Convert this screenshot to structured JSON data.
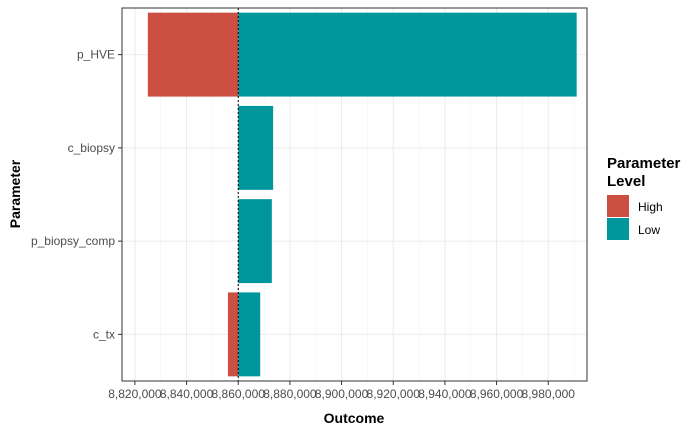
{
  "chart_data": {
    "type": "bar",
    "orientation": "horizontal",
    "subtype": "tornado",
    "xlabel": "Outcome",
    "ylabel": "Parameter",
    "xlim": [
      8815000,
      8995000
    ],
    "x_ticks": [
      8820000,
      8840000,
      8860000,
      8880000,
      8900000,
      8920000,
      8940000,
      8960000,
      8980000
    ],
    "x_tick_labels": [
      "8,820,000",
      "8,840,000",
      "8,860,000",
      "8,880,000",
      "8,900,000",
      "8,920,000",
      "8,940,000",
      "8,960,000",
      "8,980,000"
    ],
    "categories": [
      "p_HVE",
      "c_biopsy",
      "p_biopsy_comp",
      "c_tx"
    ],
    "base_value": 8860000,
    "series": [
      {
        "name": "High",
        "color": "#CB4E41",
        "ranges": [
          [
            8825000,
            8860000
          ],
          [
            8860000,
            8860000
          ],
          [
            8860000,
            8860000
          ],
          [
            8856000,
            8860000
          ]
        ]
      },
      {
        "name": "Low",
        "color": "#00979C",
        "ranges": [
          [
            8860000,
            8991000
          ],
          [
            8860000,
            8873500
          ],
          [
            8860000,
            8873000
          ],
          [
            8860000,
            8868500
          ]
        ]
      }
    ],
    "legend": {
      "title": "Parameter\nLevel",
      "title_lines": [
        "Parameter",
        "Level"
      ],
      "position": "right"
    },
    "grid": true,
    "reference_line": {
      "x": 8860000,
      "style": "dotted"
    }
  }
}
